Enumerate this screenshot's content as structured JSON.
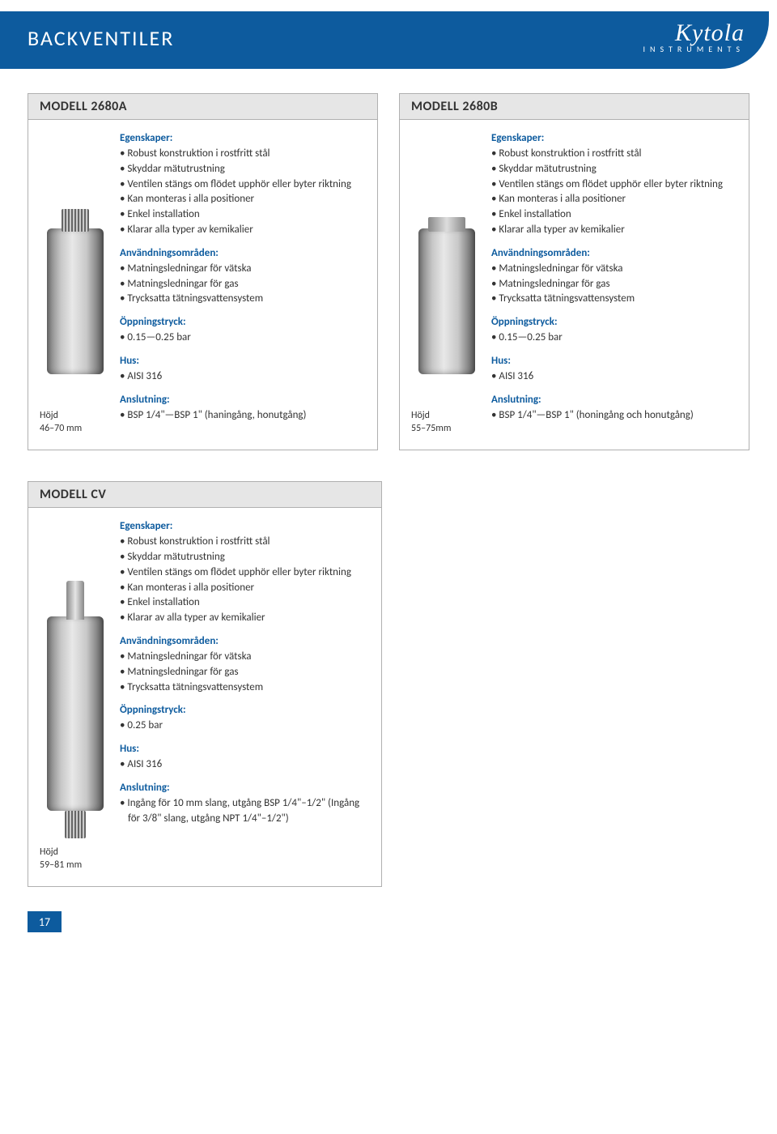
{
  "header": {
    "title": "BACKVENTILER",
    "logo_script": "Kytola",
    "logo_sub": "INSTRUMENTS"
  },
  "page_number": "17",
  "models": {
    "m2680a": {
      "title": "MODELL 2680A",
      "height_line1": "Höjd",
      "height_line2": "46–70 mm",
      "egenskaper_h": "Egenskaper:",
      "egenskaper": [
        "Robust konstruktion i rostfritt stål",
        "Skyddar mätutrustning",
        "Ventilen stängs om flödet upphör eller byter riktning",
        "Kan monteras i alla positioner",
        "Enkel installation",
        "Klarar alla typer av kemikalier"
      ],
      "anvand_h": "Användningsområden:",
      "anvand": [
        "Matningsledningar för vätska",
        "Matningsledningar för gas",
        "Trycksatta tätningsvattensystem"
      ],
      "oppning_h": "Öppningstryck:",
      "oppning": [
        "0.15—0.25 bar"
      ],
      "hus_h": "Hus:",
      "hus": [
        "AISI 316"
      ],
      "anslut_h": "Anslutning:",
      "anslut": [
        "BSP 1/4\"—BSP 1\" (haningång, honutgång)"
      ]
    },
    "m2680b": {
      "title": "MODELL 2680B",
      "height_line1": "Höjd",
      "height_line2": "55–75mm",
      "egenskaper_h": "Egenskaper:",
      "egenskaper": [
        "Robust konstruktion i rostfritt stål",
        "Skyddar mätutrustning",
        "Ventilen stängs om flödet upphör eller byter riktning",
        "Kan monteras i alla positioner",
        "Enkel installation",
        "Klarar alla typer av kemikalier"
      ],
      "anvand_h": "Användningsområden:",
      "anvand": [
        "Matningsledningar för vätska",
        "Matningsledningar för gas",
        "Trycksatta tätningsvattensystem"
      ],
      "oppning_h": "Öppningstryck:",
      "oppning": [
        "0.15—0.25 bar"
      ],
      "hus_h": "Hus:",
      "hus": [
        "AISI 316"
      ],
      "anslut_h": "Anslutning:",
      "anslut": [
        "BSP 1/4\"—BSP 1\" (honingång och honutgång)"
      ]
    },
    "mcv": {
      "title": "MODELL CV",
      "height_line1": "Höjd",
      "height_line2": "59–81 mm",
      "egenskaper_h": "Egenskaper:",
      "egenskaper": [
        "Robust konstruktion i rostfritt stål",
        "Skyddar mätutrustning",
        "Ventilen stängs om flödet upphör eller byter riktning",
        "Kan monteras i alla positioner",
        "Enkel installation",
        "Klarar av alla typer av kemikalier"
      ],
      "anvand_h": "Användningsområden:",
      "anvand": [
        "Matningsledningar för vätska",
        "Matningsledningar för gas",
        "Trycksatta tätningsvattensystem"
      ],
      "oppning_h": "Öppningstryck:",
      "oppning": [
        "0.25 bar"
      ],
      "hus_h": "Hus:",
      "hus": [
        "AISI 316"
      ],
      "anslut_h": "Anslutning:",
      "anslut": [
        "Ingång för 10 mm slang, utgång BSP 1/4\"–1/2\" (Ingång för 3/8\" slang, utgång NPT 1/4\"–1/2\")"
      ]
    }
  }
}
